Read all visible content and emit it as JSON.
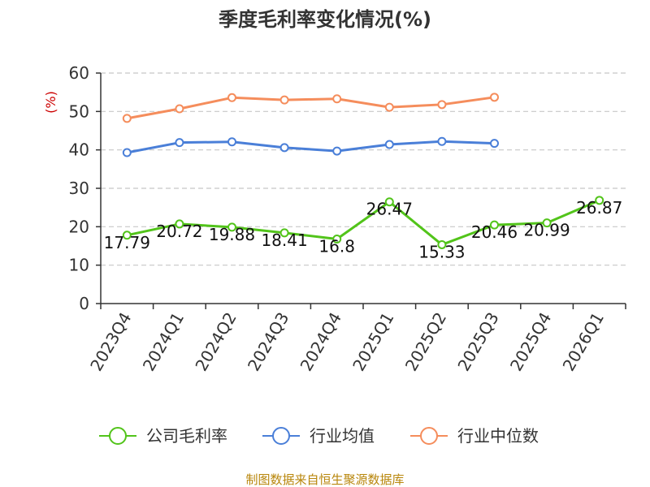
{
  "chart_data": {
    "type": "line",
    "title": "季度毛利率变化情况(%)",
    "ylabel": "(%)",
    "xlabel": "",
    "ylim": [
      0,
      60
    ],
    "yticks": [
      0,
      10,
      20,
      30,
      40,
      50,
      60
    ],
    "grid": true,
    "legend_position": "bottom",
    "categories": [
      "2023Q4",
      "2024Q1",
      "2024Q2",
      "2024Q3",
      "2024Q4",
      "2025Q1",
      "2025Q2",
      "2025Q3",
      "2025Q4",
      "2026Q1"
    ],
    "series": [
      {
        "name": "公司毛利率",
        "color": "#52c41a",
        "show_labels": true,
        "values": [
          17.79,
          20.72,
          19.88,
          18.41,
          16.8,
          26.47,
          15.33,
          20.46,
          20.99,
          26.87
        ],
        "labels": [
          "17.79",
          "20.72",
          "19.88",
          "18.41",
          "16.8",
          "26.47",
          "15.33",
          "20.46",
          "20.99",
          "26.87"
        ]
      },
      {
        "name": "行业均值",
        "color": "#4a7fd8",
        "show_labels": false,
        "values": [
          39.3,
          41.9,
          42.1,
          40.6,
          39.7,
          41.4,
          42.2,
          41.7,
          null,
          null
        ]
      },
      {
        "name": "行业中位数",
        "color": "#f58d5c",
        "show_labels": false,
        "values": [
          48.2,
          50.7,
          53.6,
          53.0,
          53.3,
          51.1,
          51.8,
          53.7,
          null,
          null
        ]
      }
    ]
  },
  "source": "制图数据来自恒生聚源数据库"
}
